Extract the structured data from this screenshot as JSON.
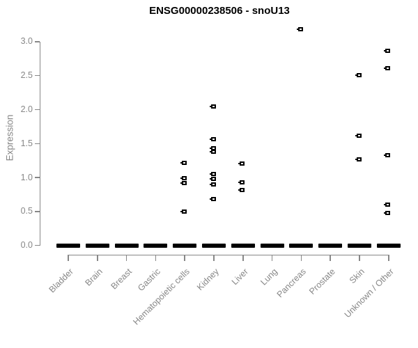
{
  "chart_data": {
    "type": "scatter",
    "title": "ENSG00000238506 - snoU13",
    "ylabel": "Expression",
    "xlabel": "",
    "ylim": [
      0,
      3.3
    ],
    "grid": false,
    "legend": "none",
    "marker": "open-square",
    "marker_color": "#000000",
    "axis_color": "#878787",
    "y_tick_labels": [
      "0.0",
      "0.5",
      "1.0",
      "1.5",
      "2.0",
      "2.5",
      "3.0"
    ],
    "categories": [
      "Bladder",
      "Brain",
      "Breast",
      "Gastric",
      "Hematopoietic cells",
      "Kidney",
      "Liver",
      "Lung",
      "Pancreas",
      "Prostate",
      "Skin",
      "Unknown / Other"
    ],
    "zero_cluster_all_categories": true,
    "series": [
      {
        "category": "Bladder",
        "values": []
      },
      {
        "category": "Brain",
        "values": []
      },
      {
        "category": "Breast",
        "values": []
      },
      {
        "category": "Gastric",
        "values": []
      },
      {
        "category": "Hematopoietic cells",
        "values": [
          1.22,
          0.99,
          0.92,
          0.5
        ]
      },
      {
        "category": "Kidney",
        "values": [
          2.05,
          1.56,
          1.43,
          1.38,
          1.05,
          0.98,
          0.9,
          0.68
        ]
      },
      {
        "category": "Liver",
        "values": [
          1.21,
          0.93,
          0.82
        ]
      },
      {
        "category": "Lung",
        "values": []
      },
      {
        "category": "Pancreas",
        "values": [
          3.18
        ]
      },
      {
        "category": "Prostate",
        "values": []
      },
      {
        "category": "Skin",
        "values": [
          2.51,
          1.62,
          1.27
        ]
      },
      {
        "category": "Unknown / Other",
        "values": [
          2.87,
          2.61,
          1.33,
          0.6,
          0.48
        ]
      }
    ]
  }
}
